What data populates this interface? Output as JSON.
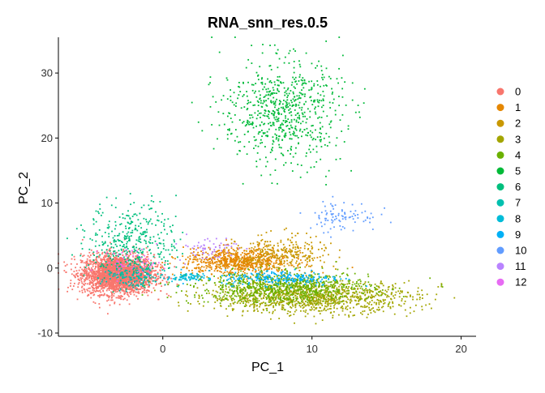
{
  "chart_data": {
    "type": "scatter",
    "title": "RNA_snn_res.0.5",
    "xlabel": "PC_1",
    "ylabel": "PC_2",
    "xlim": [
      -7,
      21
    ],
    "ylim": [
      -10.5,
      35.5
    ],
    "xticks": [
      0,
      10,
      20
    ],
    "yticks": [
      -10,
      0,
      10,
      20,
      30
    ],
    "grid": false,
    "legend_position": "right",
    "series": [
      {
        "name": "0",
        "color": "#F8766D",
        "center": [
          -3.0,
          -1.0
        ],
        "spread": [
          1.2,
          1.5
        ]
      },
      {
        "name": "1",
        "color": "#E58700",
        "center": [
          5.0,
          1.0
        ],
        "spread": [
          1.8,
          1.0
        ]
      },
      {
        "name": "2",
        "color": "#C99800",
        "center": [
          8.0,
          2.0
        ],
        "spread": [
          1.5,
          1.5
        ]
      },
      {
        "name": "3",
        "color": "#A3A500",
        "center": [
          10.0,
          -4.5
        ],
        "spread": [
          3.5,
          1.2
        ]
      },
      {
        "name": "4",
        "color": "#6BB100",
        "center": [
          8.0,
          -3.0
        ],
        "spread": [
          3.0,
          1.2
        ]
      },
      {
        "name": "5",
        "color": "#00BA38",
        "center": [
          8.0,
          24.0
        ],
        "spread": [
          2.0,
          4.0
        ]
      },
      {
        "name": "6",
        "color": "#00BF7D",
        "center": [
          -2.0,
          4.0
        ],
        "spread": [
          1.5,
          3.0
        ]
      },
      {
        "name": "7",
        "color": "#00C0AF",
        "center": [
          -2.0,
          -1.5
        ],
        "spread": [
          1.0,
          1.0
        ]
      },
      {
        "name": "8",
        "color": "#00BCD8",
        "center": [
          1.5,
          -1.5
        ],
        "spread": [
          0.6,
          0.3
        ]
      },
      {
        "name": "9",
        "color": "#00B0F6",
        "center": [
          8.0,
          -1.5
        ],
        "spread": [
          2.0,
          0.6
        ]
      },
      {
        "name": "10",
        "color": "#619CFF",
        "center": [
          12.0,
          8.0
        ],
        "spread": [
          1.2,
          1.2
        ]
      },
      {
        "name": "11",
        "color": "#B983FF",
        "center": [
          3.0,
          3.0
        ],
        "spread": [
          1.0,
          1.0
        ]
      },
      {
        "name": "12",
        "color": "#E76BF3",
        "center": [
          -2.0,
          1.0
        ],
        "spread": [
          1.0,
          1.0
        ]
      }
    ]
  }
}
